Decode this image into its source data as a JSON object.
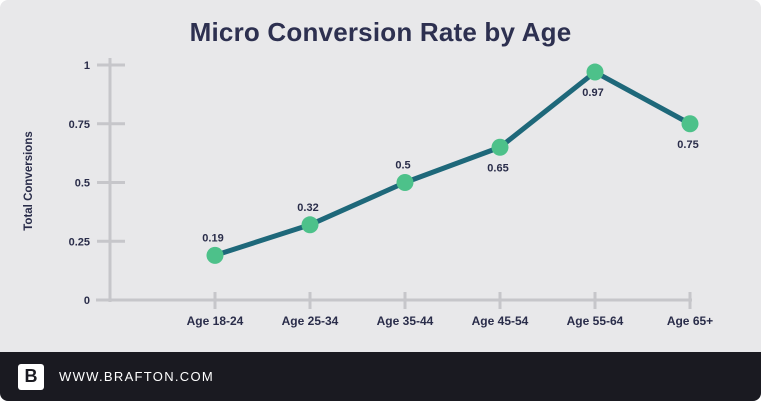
{
  "chart_data": {
    "type": "line",
    "title": "Micro Conversion Rate by Age",
    "xlabel": "",
    "ylabel": "Total Conversions",
    "categories": [
      "Age 18-24",
      "Age 25-34",
      "Age 35-44",
      "Age 45-54",
      "Age 55-64",
      "Age 65+"
    ],
    "values": [
      0.19,
      0.32,
      0.5,
      0.65,
      0.97,
      0.75
    ],
    "point_labels": [
      "0.19",
      "0.32",
      "0.5",
      "0.65",
      "0.97",
      "0.75"
    ],
    "label_positions": [
      "above",
      "above",
      "above",
      "below",
      "below",
      "below"
    ],
    "ylim": [
      0,
      1
    ],
    "y_ticks": [
      {
        "v": 0,
        "label": "0"
      },
      {
        "v": 0.25,
        "label": "0.25"
      },
      {
        "v": 0.5,
        "label": "0.5"
      },
      {
        "v": 0.75,
        "label": "0.75"
      },
      {
        "v": 1,
        "label": "1"
      }
    ],
    "grid": false,
    "legend": "none",
    "colors": {
      "background": "#e8e8ea",
      "line": "#1e687a",
      "marker": "#4dc18a",
      "axis": "#c6c6ca",
      "text": "#2a2d4a",
      "title": "#2d3050"
    }
  },
  "footer": {
    "logo_letter": "B",
    "website": "WWW.BRAFTON.COM"
  }
}
